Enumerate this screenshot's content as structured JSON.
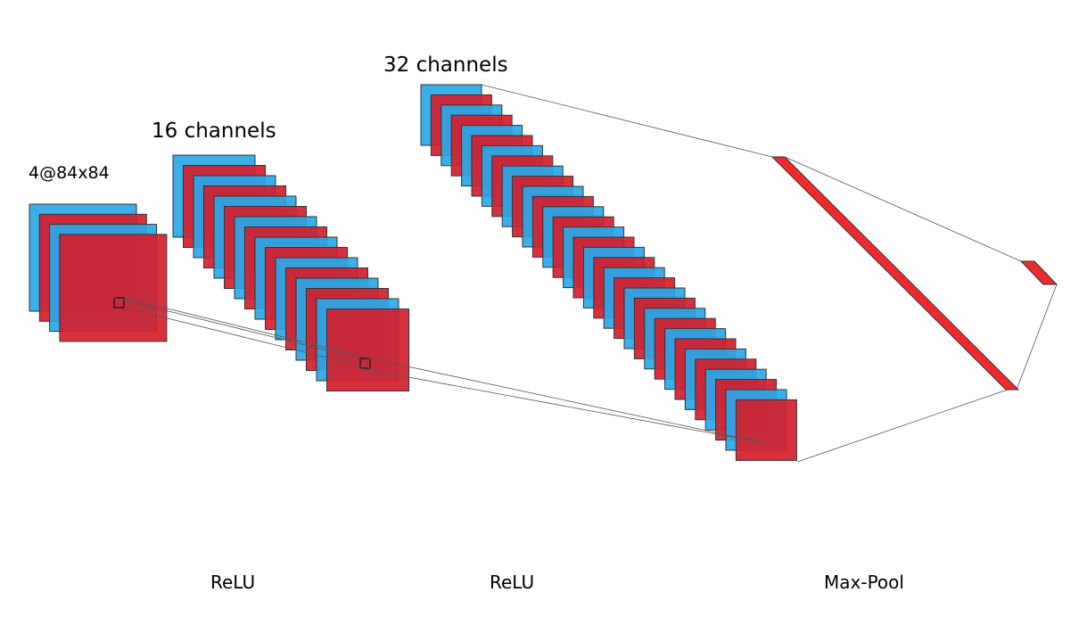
{
  "labels": {
    "input": "4@84x84",
    "conv1_channels": "16 channels",
    "conv2_channels": "32 channels",
    "op1": "ReLU",
    "op2": "ReLU",
    "op3": "Max-Pool"
  },
  "layers": [
    {
      "name": "input",
      "stack_count": 4
    },
    {
      "name": "conv1",
      "stack_count": 16
    },
    {
      "name": "conv2",
      "stack_count": 32
    }
  ],
  "colors": {
    "blue": "#29a8e8",
    "red": "#d41f2e",
    "pool_red": "#ee2a2e",
    "outline": "#333333",
    "connector": "#555555"
  }
}
